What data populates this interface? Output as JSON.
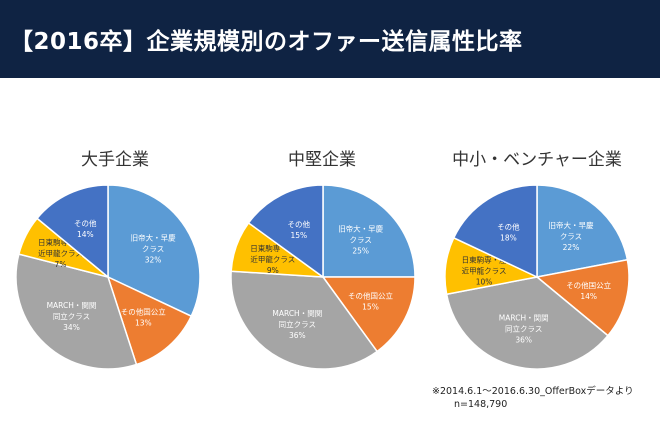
{
  "header": {
    "title": "【2016卒】企業規模別のオファー送信属性比率"
  },
  "colors": {
    "title_bg": "#0f2343",
    "slices": [
      "#5b9bd5",
      "#ed7d31",
      "#a5a5a5",
      "#ffc000",
      "#4472c4"
    ]
  },
  "chart_data": [
    {
      "type": "pie",
      "title": "大手企業",
      "categories": [
        "旧帝大・早慶クラス",
        "その他国公立",
        "MARCH・関関同立クラス",
        "日東駒専・産近甲龍クラス",
        "その他"
      ],
      "labels": [
        [
          "旧帝大・早慶",
          "クラス"
        ],
        [
          "その他国公立"
        ],
        [
          "MARCH・関関",
          "同立クラス"
        ],
        [
          "日東駒専・産",
          "近甲龍クラス"
        ],
        [
          "その他"
        ]
      ],
      "values": [
        32,
        13,
        34,
        7,
        14
      ],
      "value_labels": [
        "32%",
        "13%",
        "34%",
        "7%",
        "14%"
      ]
    },
    {
      "type": "pie",
      "title": "中堅企業",
      "categories": [
        "旧帝大・早慶クラス",
        "その他国公立",
        "MARCH・関関同立クラス",
        "日東駒専・産近甲龍クラス",
        "その他"
      ],
      "labels": [
        [
          "旧帝大・早慶",
          "クラス"
        ],
        [
          "その他国公立"
        ],
        [
          "MARCH・関関",
          "同立クラス"
        ],
        [
          "日東駒専・産",
          "近甲龍クラス"
        ],
        [
          "その他"
        ]
      ],
      "values": [
        25,
        15,
        36,
        9,
        15
      ],
      "value_labels": [
        "25%",
        "15%",
        "36%",
        "9%",
        "15%"
      ]
    },
    {
      "type": "pie",
      "title": "中小・ベンチャー企業",
      "categories": [
        "旧帝大・早慶クラス",
        "その他国公立",
        "MARCH・関関同立クラス",
        "日東駒専・産近甲龍クラス",
        "その他"
      ],
      "labels": [
        [
          "旧帝大・早慶",
          "クラス"
        ],
        [
          "その他国公立"
        ],
        [
          "MARCH・関関",
          "同立クラス"
        ],
        [
          "日東駒専・産",
          "近甲龍クラス"
        ],
        [
          "その他"
        ]
      ],
      "values": [
        22,
        14,
        36,
        10,
        18
      ],
      "value_labels": [
        "22%",
        "14%",
        "36%",
        "10%",
        "18%"
      ]
    }
  ],
  "footnote": {
    "source": "※2014.6.1～2016.6.30_OfferBoxデータより",
    "sample": "n=148,790"
  }
}
